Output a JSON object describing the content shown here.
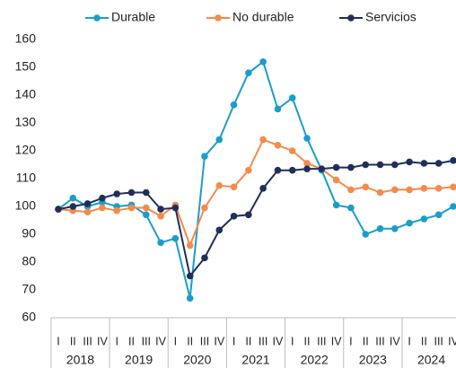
{
  "chart_data": {
    "type": "line",
    "categories": [
      "I",
      "II",
      "III",
      "IV",
      "I",
      "II",
      "III",
      "IV",
      "I",
      "II",
      "III",
      "IV",
      "I",
      "II",
      "III",
      "IV",
      "I",
      "II",
      "III",
      "IV",
      "I",
      "II",
      "III",
      "IV",
      "I",
      "II",
      "III",
      "IV"
    ],
    "years": [
      "2018",
      "2019",
      "2020",
      "2021",
      "2022",
      "2023",
      "2024"
    ],
    "series": [
      {
        "name": "Durable",
        "color": "#1b9dc9",
        "values": [
          99,
          103,
          100,
          101.5,
          100,
          100.5,
          97,
          87,
          88.5,
          67,
          118,
          124,
          136.5,
          148,
          152,
          135,
          139,
          124.5,
          113,
          100.5,
          99.5,
          90,
          92,
          92,
          94,
          95.5,
          97,
          100
        ]
      },
      {
        "name": "No durable",
        "color": "#f28b4c",
        "values": [
          99,
          98.5,
          98,
          99.5,
          98.5,
          99.5,
          99.5,
          96.5,
          100.5,
          86,
          99.5,
          107.5,
          107,
          113,
          124,
          122,
          120,
          115.5,
          113.5,
          109.5,
          106,
          107,
          105,
          106,
          106,
          106.5,
          106.5,
          107
        ]
      },
      {
        "name": "Servicios",
        "color": "#1f2f5a",
        "values": [
          99,
          100,
          101,
          103,
          104.5,
          105,
          105,
          99,
          99.5,
          75,
          81.5,
          91.5,
          96.5,
          97,
          106.5,
          113,
          113,
          113.5,
          113.5,
          114,
          114,
          115,
          115,
          115,
          116,
          115.5,
          115.5,
          116.5
        ]
      }
    ],
    "ylim": [
      60,
      160
    ],
    "yticks": [
      60,
      70,
      80,
      90,
      100,
      110,
      120,
      130,
      140,
      150,
      160
    ],
    "legend": "top"
  }
}
